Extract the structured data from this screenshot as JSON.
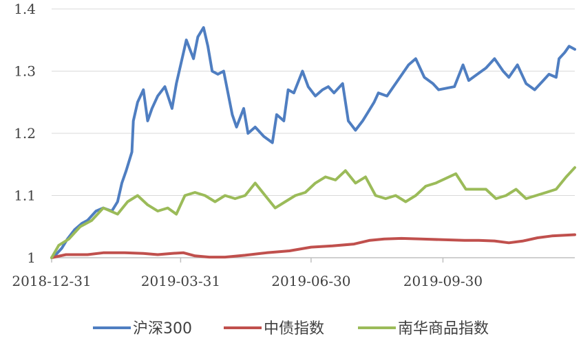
{
  "chart_data": {
    "type": "line",
    "title": "",
    "xlabel": "",
    "ylabel": "",
    "x_ticks": [
      "2018-12-31",
      "2019-03-31",
      "2019-06-30",
      "2019-09-30"
    ],
    "y_ticks": [
      "1",
      "1.1",
      "1.2",
      "1.3",
      "1.4"
    ],
    "ylim": [
      1.0,
      1.4
    ],
    "xlim": [
      "2018-12-31",
      "2019-12-31"
    ],
    "grid": "horizontal",
    "legend_position": "bottom",
    "series": [
      {
        "name": "沪深300",
        "color": "#4f7ec1",
        "x": [
          "2018-12-31",
          "2019-01-03",
          "2019-01-07",
          "2019-01-11",
          "2019-01-16",
          "2019-01-21",
          "2019-01-25",
          "2019-01-31",
          "2019-02-05",
          "2019-02-11",
          "2019-02-15",
          "2019-02-18",
          "2019-02-21",
          "2019-02-25",
          "2019-02-26",
          "2019-03-01",
          "2019-03-05",
          "2019-03-08",
          "2019-03-11",
          "2019-03-15",
          "2019-03-20",
          "2019-03-25",
          "2019-03-28",
          "2019-04-02",
          "2019-04-04",
          "2019-04-09",
          "2019-04-12",
          "2019-04-16",
          "2019-04-19",
          "2019-04-22",
          "2019-04-26",
          "2019-04-30",
          "2019-05-06",
          "2019-05-09",
          "2019-05-14",
          "2019-05-17",
          "2019-05-22",
          "2019-05-28",
          "2019-06-03",
          "2019-06-06",
          "2019-06-11",
          "2019-06-14",
          "2019-06-18",
          "2019-06-24",
          "2019-06-28",
          "2019-07-03",
          "2019-07-08",
          "2019-07-12",
          "2019-07-16",
          "2019-07-22",
          "2019-07-26",
          "2019-07-31",
          "2019-08-05",
          "2019-08-09",
          "2019-08-13",
          "2019-08-16",
          "2019-08-22",
          "2019-08-28",
          "2019-09-03",
          "2019-09-06",
          "2019-09-11",
          "2019-09-17",
          "2019-09-23",
          "2019-09-27",
          "2019-10-08",
          "2019-10-14",
          "2019-10-18",
          "2019-10-24",
          "2019-10-30",
          "2019-11-05",
          "2019-11-11",
          "2019-11-15",
          "2019-11-21",
          "2019-11-27",
          "2019-12-03",
          "2019-12-09",
          "2019-12-13",
          "2019-12-18",
          "2019-12-20",
          "2019-12-24",
          "2019-12-27",
          "2019-12-31"
        ],
        "values": [
          1.0,
          1.005,
          1.015,
          1.03,
          1.045,
          1.055,
          1.06,
          1.075,
          1.08,
          1.075,
          1.09,
          1.12,
          1.14,
          1.17,
          1.22,
          1.25,
          1.27,
          1.22,
          1.24,
          1.26,
          1.275,
          1.24,
          1.28,
          1.33,
          1.35,
          1.32,
          1.355,
          1.37,
          1.34,
          1.3,
          1.295,
          1.3,
          1.23,
          1.21,
          1.24,
          1.2,
          1.21,
          1.195,
          1.185,
          1.23,
          1.22,
          1.27,
          1.265,
          1.3,
          1.275,
          1.26,
          1.27,
          1.275,
          1.265,
          1.28,
          1.22,
          1.205,
          1.22,
          1.235,
          1.25,
          1.265,
          1.26,
          1.28,
          1.3,
          1.31,
          1.32,
          1.29,
          1.28,
          1.27,
          1.275,
          1.31,
          1.285,
          1.295,
          1.305,
          1.32,
          1.3,
          1.29,
          1.31,
          1.28,
          1.27,
          1.285,
          1.295,
          1.29,
          1.32,
          1.33,
          1.34,
          1.335
        ]
      },
      {
        "name": "中债指数",
        "color": "#c0504d",
        "x": [
          "2018-12-31",
          "2019-01-10",
          "2019-01-25",
          "2019-02-05",
          "2019-02-20",
          "2019-03-05",
          "2019-03-15",
          "2019-03-25",
          "2019-04-02",
          "2019-04-10",
          "2019-04-20",
          "2019-05-01",
          "2019-05-15",
          "2019-05-30",
          "2019-06-15",
          "2019-06-30",
          "2019-07-15",
          "2019-07-30",
          "2019-08-10",
          "2019-08-20",
          "2019-09-01",
          "2019-09-15",
          "2019-09-30",
          "2019-10-15",
          "2019-10-25",
          "2019-11-05",
          "2019-11-15",
          "2019-11-25",
          "2019-12-05",
          "2019-12-15",
          "2019-12-31"
        ],
        "values": [
          1.0,
          1.005,
          1.005,
          1.008,
          1.008,
          1.007,
          1.005,
          1.007,
          1.008,
          1.003,
          1.001,
          1.001,
          1.004,
          1.008,
          1.011,
          1.017,
          1.019,
          1.022,
          1.028,
          1.03,
          1.031,
          1.03,
          1.029,
          1.028,
          1.028,
          1.027,
          1.024,
          1.027,
          1.032,
          1.035,
          1.037
        ]
      },
      {
        "name": "南华商品指数",
        "color": "#9bbb59",
        "x": [
          "2018-12-31",
          "2019-01-05",
          "2019-01-12",
          "2019-01-20",
          "2019-01-28",
          "2019-02-05",
          "2019-02-15",
          "2019-02-22",
          "2019-03-01",
          "2019-03-08",
          "2019-03-15",
          "2019-03-22",
          "2019-03-28",
          "2019-04-03",
          "2019-04-10",
          "2019-04-17",
          "2019-04-24",
          "2019-05-01",
          "2019-05-08",
          "2019-05-15",
          "2019-05-22",
          "2019-05-29",
          "2019-06-05",
          "2019-06-12",
          "2019-06-19",
          "2019-06-26",
          "2019-07-03",
          "2019-07-10",
          "2019-07-17",
          "2019-07-24",
          "2019-07-31",
          "2019-08-07",
          "2019-08-14",
          "2019-08-21",
          "2019-08-28",
          "2019-09-04",
          "2019-09-11",
          "2019-09-18",
          "2019-09-25",
          "2019-10-09",
          "2019-10-16",
          "2019-10-23",
          "2019-10-30",
          "2019-11-06",
          "2019-11-13",
          "2019-11-20",
          "2019-11-27",
          "2019-12-04",
          "2019-12-11",
          "2019-12-18",
          "2019-12-25",
          "2019-12-31"
        ],
        "values": [
          1.0,
          1.02,
          1.03,
          1.05,
          1.06,
          1.08,
          1.07,
          1.09,
          1.1,
          1.085,
          1.075,
          1.08,
          1.07,
          1.1,
          1.105,
          1.1,
          1.09,
          1.1,
          1.095,
          1.1,
          1.12,
          1.1,
          1.08,
          1.09,
          1.1,
          1.105,
          1.12,
          1.13,
          1.125,
          1.14,
          1.12,
          1.13,
          1.1,
          1.095,
          1.1,
          1.09,
          1.1,
          1.115,
          1.12,
          1.135,
          1.11,
          1.11,
          1.11,
          1.095,
          1.1,
          1.11,
          1.095,
          1.1,
          1.105,
          1.11,
          1.13,
          1.145
        ]
      }
    ]
  }
}
